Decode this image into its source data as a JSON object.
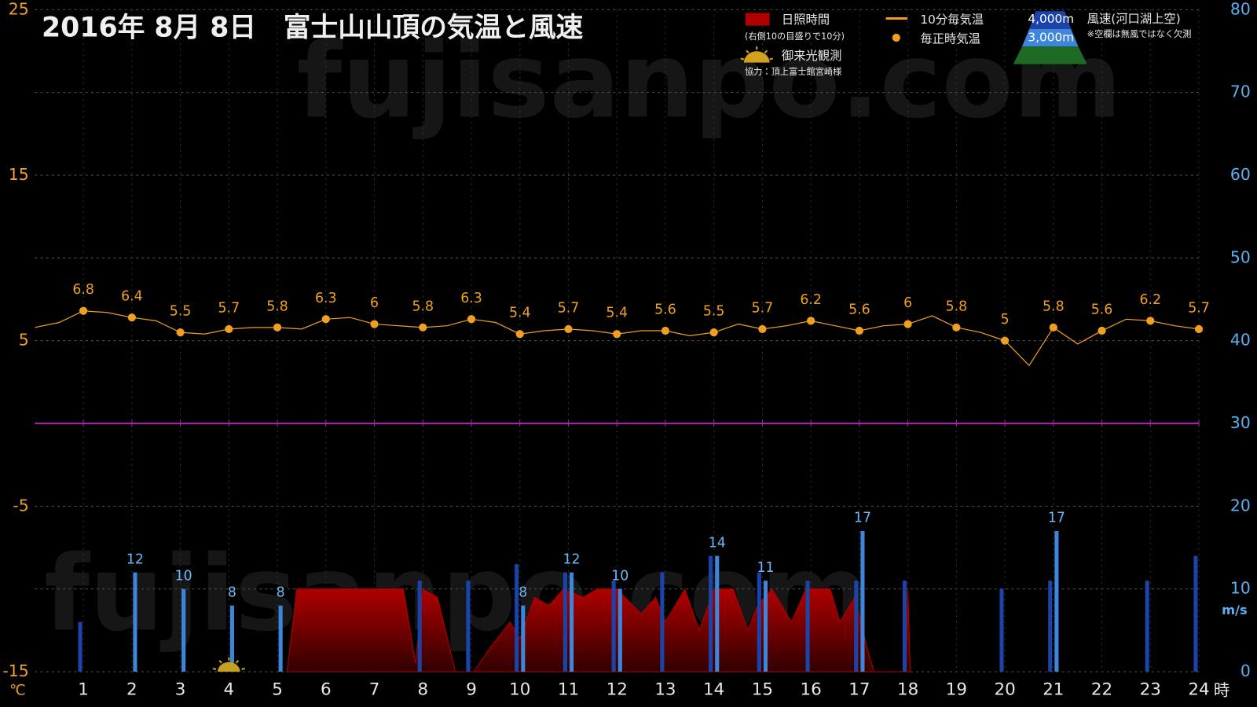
{
  "chart_data": {
    "type": "combo",
    "title": "2016年 8月 8日　富士山山頂の気温と風速",
    "watermark": "fujisanpo.com",
    "area_note": "(右側10の目盛りで10分)",
    "sunrise_label": "御来光観測",
    "sunrise_hour": 4,
    "credit": "協力：頂上富士館宮崎様",
    "wind_label": "風速(河口湖上空)",
    "wind_note": "※空欄は無風ではなく欠測",
    "xlim": [
      0,
      24
    ],
    "xticks": [
      1,
      2,
      3,
      4,
      5,
      6,
      7,
      8,
      9,
      10,
      11,
      12,
      13,
      14,
      15,
      16,
      17,
      18,
      19,
      20,
      21,
      22,
      23,
      24
    ],
    "x_unit": "時",
    "ylim": [
      -15,
      25
    ],
    "yticks": [
      -15,
      -5,
      5,
      15,
      25
    ],
    "y_unit": "℃",
    "y2lim": [
      0,
      80
    ],
    "y2ticks": [
      0,
      10,
      20,
      30,
      40,
      50,
      60,
      70,
      80
    ],
    "y2_unit": "m/s",
    "grid": true,
    "zero_line_color": "#b020b0",
    "series": [
      {
        "name": "10分毎気温",
        "type": "line",
        "color": "#f0a020",
        "x": [
          0,
          0.5,
          1,
          1.5,
          2,
          2.5,
          3,
          3.5,
          4,
          4.5,
          5,
          5.5,
          6,
          6.5,
          7,
          7.5,
          8,
          8.5,
          9,
          9.5,
          10,
          10.5,
          11,
          11.5,
          12,
          12.5,
          13,
          13.5,
          14,
          14.5,
          15,
          15.5,
          16,
          16.5,
          17,
          17.5,
          18,
          18.5,
          19,
          19.5,
          20,
          20.5,
          21,
          21.5,
          22,
          22.5,
          23,
          23.5,
          24
        ],
        "values": [
          5.8,
          6.1,
          6.8,
          6.7,
          6.4,
          6.2,
          5.5,
          5.4,
          5.7,
          5.8,
          5.8,
          5.7,
          6.3,
          6.4,
          6,
          5.9,
          5.8,
          5.9,
          6.3,
          6.1,
          5.4,
          5.6,
          5.7,
          5.6,
          5.4,
          5.6,
          5.6,
          5.3,
          5.5,
          6.0,
          5.7,
          5.9,
          6.2,
          5.9,
          5.6,
          5.9,
          6,
          6.5,
          5.8,
          5.5,
          5,
          3.5,
          5.8,
          4.8,
          5.6,
          6.3,
          6.2,
          5.9,
          5.7
        ]
      },
      {
        "name": "毎正時気温",
        "type": "scatter",
        "color": "#f0a020",
        "x": [
          1,
          2,
          3,
          4,
          5,
          6,
          7,
          8,
          9,
          10,
          11,
          12,
          13,
          14,
          15,
          16,
          17,
          18,
          19,
          20,
          21,
          22,
          23,
          24
        ],
        "values": [
          6.8,
          6.4,
          5.5,
          5.7,
          5.8,
          6.3,
          6,
          5.8,
          6.3,
          5.4,
          5.7,
          5.4,
          5.6,
          5.5,
          5.7,
          6.2,
          5.6,
          6,
          5.8,
          5,
          5.8,
          5.6,
          6.2,
          5.7
        ]
      },
      {
        "name": "日照時間",
        "type": "area",
        "axis": "y2",
        "color": "#b00000",
        "x": [
          5.2,
          5.4,
          7.6,
          7.85,
          8.0,
          8.3,
          8.67,
          9.05,
          9.4,
          9.8,
          10.0,
          10.3,
          10.6,
          10.9,
          11.3,
          11.6,
          12.0,
          12.5,
          12.8,
          13.0,
          13.4,
          13.7,
          14.0,
          14.4,
          14.7,
          14.9,
          15.2,
          15.6,
          15.9,
          16.4,
          16.6,
          16.9,
          17.2,
          17.3,
          17.95,
          18.0,
          18.05
        ],
        "values": [
          0,
          10,
          10,
          1,
          10,
          9,
          0,
          0,
          3,
          6,
          4,
          9,
          8,
          10,
          9,
          10,
          10,
          7,
          9,
          6,
          10,
          5,
          10,
          10,
          5,
          8,
          10,
          6,
          10,
          10,
          6,
          9,
          2,
          0,
          0,
          10,
          0
        ]
      },
      {
        "name": "4,000m",
        "type": "bar",
        "axis": "y2",
        "color": "#1c44a8",
        "x": [
          1,
          2,
          3,
          4,
          5,
          6,
          7,
          8,
          9,
          10,
          11,
          12,
          13,
          14,
          15,
          16,
          17,
          18,
          19,
          20,
          21,
          22,
          23,
          24
        ],
        "values": [
          6,
          null,
          null,
          null,
          null,
          null,
          null,
          11,
          11,
          13,
          12,
          11,
          12,
          14,
          12,
          11,
          11,
          11,
          null,
          10,
          11,
          null,
          11,
          14
        ]
      },
      {
        "name": "3,000m",
        "type": "bar",
        "axis": "y2",
        "color": "#3d86dc",
        "x": [
          1,
          2,
          3,
          4,
          5,
          6,
          7,
          8,
          9,
          10,
          11,
          12,
          13,
          14,
          15,
          16,
          17,
          18,
          19,
          20,
          21,
          22,
          23,
          24
        ],
        "values": [
          null,
          12,
          10,
          8,
          8,
          null,
          null,
          null,
          null,
          8,
          12,
          10,
          null,
          14,
          11,
          null,
          17,
          null,
          null,
          null,
          17,
          null,
          null,
          null
        ]
      }
    ]
  }
}
